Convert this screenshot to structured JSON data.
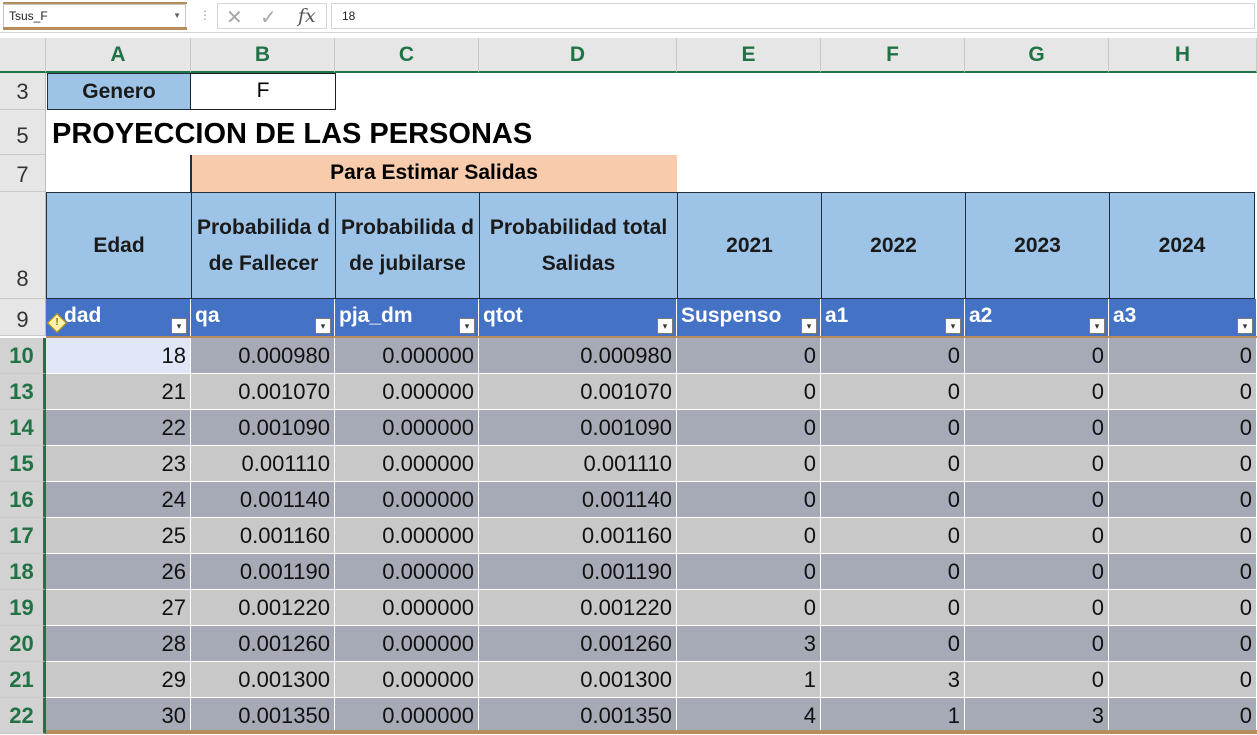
{
  "formula_bar": {
    "name_box": "Tsus_F",
    "dots": "⋮",
    "cancel_icon": "✕",
    "enter_icon": "✓",
    "fx_label": "fx",
    "formula_value": "18"
  },
  "columns": [
    "A",
    "B",
    "C",
    "D",
    "E",
    "F",
    "G",
    "H"
  ],
  "rows": {
    "r3": "3",
    "r5": "5",
    "r7": "7",
    "r8": "8",
    "r9": "9"
  },
  "genero": {
    "label": "Genero",
    "value": "F"
  },
  "title": "PROYECCION DE LAS PERSONAS",
  "salidas_band": "Para Estimar Salidas",
  "headers": {
    "edad": "Edad",
    "fallecer": "Probabilida d de Fallecer",
    "jubilarse": "Probabilida d de jubilarse",
    "total": "Probabilidad total Salidas",
    "y2021": "2021",
    "y2022": "2022",
    "y2023": "2023",
    "y2024": "2024"
  },
  "table_columns": [
    "dad",
    "qa",
    "pja_dm",
    "qtot",
    "Suspenso",
    "a1",
    "a2",
    "a3"
  ],
  "table_rows": [
    {
      "row": "10",
      "edad": "18",
      "qa": "0.000980",
      "pja": "0.000000",
      "qtot": "0.000980",
      "e": "0",
      "f": "0",
      "g": "0",
      "h": "0"
    },
    {
      "row": "13",
      "edad": "21",
      "qa": "0.001070",
      "pja": "0.000000",
      "qtot": "0.001070",
      "e": "0",
      "f": "0",
      "g": "0",
      "h": "0"
    },
    {
      "row": "14",
      "edad": "22",
      "qa": "0.001090",
      "pja": "0.000000",
      "qtot": "0.001090",
      "e": "0",
      "f": "0",
      "g": "0",
      "h": "0"
    },
    {
      "row": "15",
      "edad": "23",
      "qa": "0.001110",
      "pja": "0.000000",
      "qtot": "0.001110",
      "e": "0",
      "f": "0",
      "g": "0",
      "h": "0"
    },
    {
      "row": "16",
      "edad": "24",
      "qa": "0.001140",
      "pja": "0.000000",
      "qtot": "0.001140",
      "e": "0",
      "f": "0",
      "g": "0",
      "h": "0"
    },
    {
      "row": "17",
      "edad": "25",
      "qa": "0.001160",
      "pja": "0.000000",
      "qtot": "0.001160",
      "e": "0",
      "f": "0",
      "g": "0",
      "h": "0"
    },
    {
      "row": "18",
      "edad": "26",
      "qa": "0.001190",
      "pja": "0.000000",
      "qtot": "0.001190",
      "e": "0",
      "f": "0",
      "g": "0",
      "h": "0"
    },
    {
      "row": "19",
      "edad": "27",
      "qa": "0.001220",
      "pja": "0.000000",
      "qtot": "0.001220",
      "e": "0",
      "f": "0",
      "g": "0",
      "h": "0"
    },
    {
      "row": "20",
      "edad": "28",
      "qa": "0.001260",
      "pja": "0.000000",
      "qtot": "0.001260",
      "e": "3",
      "f": "0",
      "g": "0",
      "h": "0"
    },
    {
      "row": "21",
      "edad": "29",
      "qa": "0.001300",
      "pja": "0.000000",
      "qtot": "0.001300",
      "e": "1",
      "f": "3",
      "g": "0",
      "h": "0"
    },
    {
      "row": "22",
      "edad": "30",
      "qa": "0.001350",
      "pja": "0.000000",
      "qtot": "0.001350",
      "e": "4",
      "f": "1",
      "g": "3",
      "h": "0"
    }
  ],
  "icons": {
    "filter": "filter-dropdown-icon",
    "warning": "error-warning-icon",
    "dropdown_glyph": "▾"
  },
  "colors": {
    "header_blue": "#9dc3e6",
    "table_header_blue": "#4472c4",
    "peach": "#f8cbad",
    "row_dark": "#a6a9b6",
    "row_light": "#c8c8c8",
    "excel_green": "#217346"
  }
}
